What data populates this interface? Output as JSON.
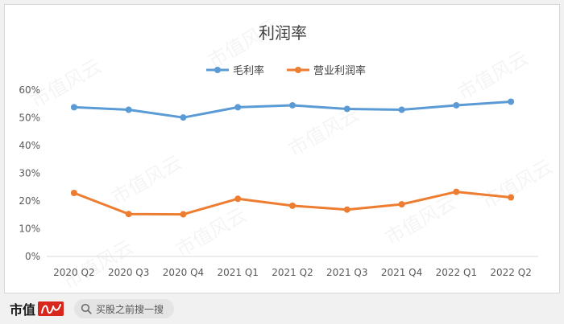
{
  "chart_data": {
    "type": "line",
    "title": "利润率",
    "categories": [
      "2020 Q2",
      "2020 Q3",
      "2020 Q4",
      "2021 Q1",
      "2021 Q2",
      "2021 Q3",
      "2021 Q4",
      "2022 Q1",
      "2022 Q2"
    ],
    "series": [
      {
        "name": "毛利率",
        "color": "#5b9bd5",
        "values": [
          53.8,
          52.9,
          50.1,
          53.8,
          54.5,
          53.2,
          52.9,
          54.5,
          55.8
        ]
      },
      {
        "name": "营业利润率",
        "color": "#ed7d31",
        "values": [
          22.9,
          15.3,
          15.2,
          20.8,
          18.3,
          16.9,
          18.8,
          23.3,
          21.3
        ]
      }
    ],
    "y_ticks": [
      "0%",
      "10%",
      "20%",
      "30%",
      "40%",
      "50%",
      "60%"
    ],
    "ylim": [
      0,
      60
    ],
    "grid": false,
    "legend": "top-center"
  },
  "watermark": "市值风云",
  "footer": {
    "brand_name": "市值",
    "brand_script": "风云",
    "search_text": "买股之前搜一搜"
  }
}
